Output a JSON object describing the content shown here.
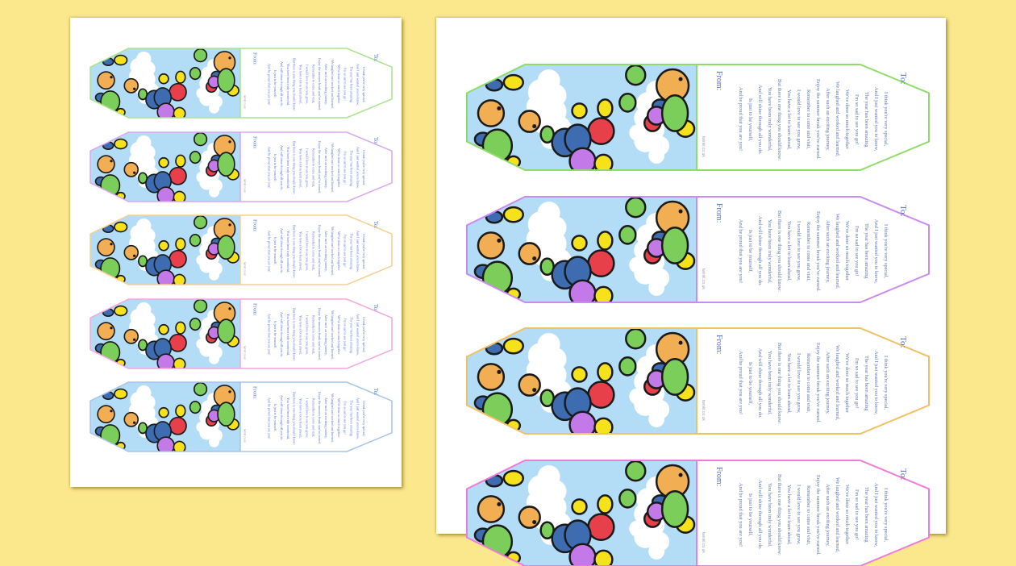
{
  "colors": {
    "background": "#fbe78c",
    "sheet": "#ffffff",
    "sky": "#b3dcf7",
    "cloud": "#ffffff",
    "text": "#4f72c9",
    "balloon_yellow": "#f5e21a",
    "balloon_red": "#e8404a",
    "balloon_blue": "#3e6cb0",
    "balloon_purple": "#c37ae8",
    "balloon_green": "#7cce5a",
    "balloon_orange": "#f2ae52"
  },
  "bookmark_text": {
    "to_label": "To:",
    "from_label": "From:",
    "site": "twinkl.co.uk",
    "poem_lines": [
      "I think you're very special,",
      "And I just wanted you to know,",
      "The year has been amazing",
      "I'm so sad to see you go!",
      "We've done so much together",
      "We laughed and worked and learned,",
      "After such an exciting journey,",
      "Enjoy the summer break you've earned.",
      "Remember to come and visit,",
      "I would love to see you grow,",
      "You have a lot to learn ahead,",
      "But there is one thing you should know:",
      "You have been truly wonderful,",
      "And will shine through all you do.",
      "Is just to be yourself,",
      "And be proud that you are you!"
    ]
  },
  "sheets": [
    {
      "name": "left-sheet",
      "bookmarks": [
        {
          "border": "#a9e38a"
        },
        {
          "border": "#d9a6f0"
        },
        {
          "border": "#f5cf8e"
        },
        {
          "border": "#f4a6df"
        },
        {
          "border": "#a8c2e8"
        }
      ]
    },
    {
      "name": "right-sheet",
      "bookmarks": [
        {
          "border": "#8fdc6b"
        },
        {
          "border": "#c98bf0"
        },
        {
          "border": "#f2c063"
        },
        {
          "border": "#f07ad8"
        }
      ]
    }
  ]
}
